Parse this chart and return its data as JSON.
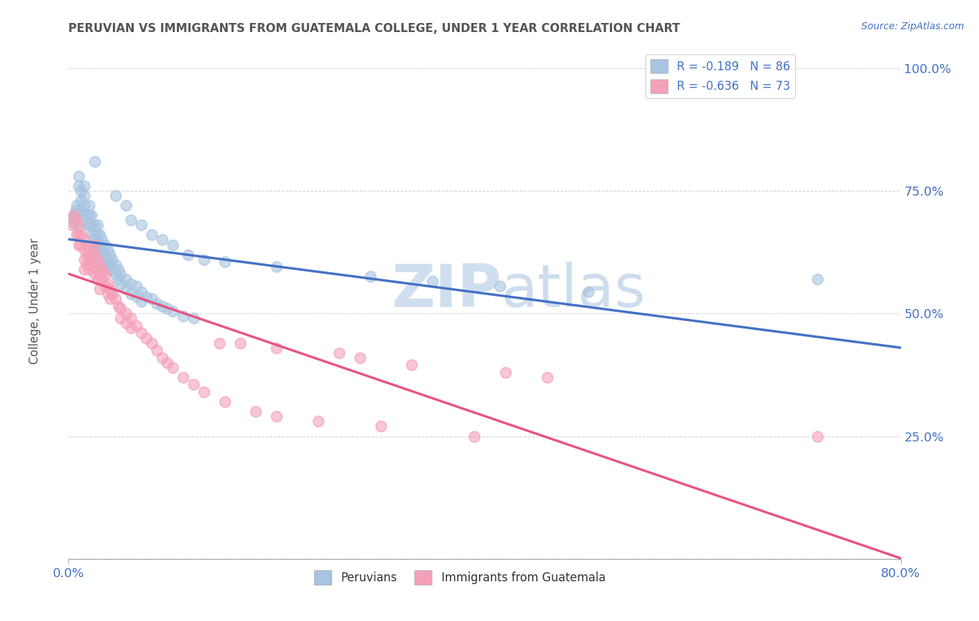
{
  "title": "PERUVIAN VS IMMIGRANTS FROM GUATEMALA COLLEGE, UNDER 1 YEAR CORRELATION CHART",
  "source_text": "Source: ZipAtlas.com",
  "ylabel": "College, Under 1 year",
  "legend_labels": [
    "Peruvians",
    "Immigrants from Guatemala"
  ],
  "r_values": [
    -0.189,
    -0.636
  ],
  "n_values": [
    86,
    73
  ],
  "scatter_color_blue": "#a8c4e0",
  "scatter_color_pink": "#f4a0b8",
  "line_color_blue": "#4472c4",
  "line_color_pink": "#e85580",
  "background_color": "#ffffff",
  "grid_color": "#cccccc",
  "title_color": "#555555",
  "axis_label_color": "#4472c4",
  "watermark_color": "#d0dff0",
  "xmin": 0.0,
  "xmax": 0.8,
  "ymin": 0.0,
  "ymax": 1.05,
  "yticks": [
    0.0,
    0.25,
    0.5,
    0.75,
    1.0
  ],
  "ytick_labels": [
    "",
    "25.0%",
    "50.0%",
    "75.0%",
    "100.0%"
  ],
  "blue_scatter": [
    [
      0.005,
      0.685
    ],
    [
      0.005,
      0.695
    ],
    [
      0.005,
      0.7
    ],
    [
      0.007,
      0.71
    ],
    [
      0.008,
      0.72
    ],
    [
      0.008,
      0.7
    ],
    [
      0.008,
      0.68
    ],
    [
      0.01,
      0.78
    ],
    [
      0.01,
      0.76
    ],
    [
      0.012,
      0.75
    ],
    [
      0.012,
      0.73
    ],
    [
      0.012,
      0.71
    ],
    [
      0.015,
      0.76
    ],
    [
      0.015,
      0.74
    ],
    [
      0.015,
      0.72
    ],
    [
      0.015,
      0.7
    ],
    [
      0.018,
      0.7
    ],
    [
      0.018,
      0.68
    ],
    [
      0.02,
      0.72
    ],
    [
      0.02,
      0.7
    ],
    [
      0.02,
      0.68
    ],
    [
      0.022,
      0.7
    ],
    [
      0.022,
      0.68
    ],
    [
      0.022,
      0.66
    ],
    [
      0.025,
      0.68
    ],
    [
      0.025,
      0.66
    ],
    [
      0.025,
      0.64
    ],
    [
      0.025,
      0.81
    ],
    [
      0.028,
      0.68
    ],
    [
      0.028,
      0.66
    ],
    [
      0.028,
      0.64
    ],
    [
      0.028,
      0.62
    ],
    [
      0.03,
      0.66
    ],
    [
      0.03,
      0.64
    ],
    [
      0.03,
      0.62
    ],
    [
      0.03,
      0.6
    ],
    [
      0.032,
      0.65
    ],
    [
      0.032,
      0.63
    ],
    [
      0.035,
      0.64
    ],
    [
      0.035,
      0.62
    ],
    [
      0.035,
      0.6
    ],
    [
      0.038,
      0.63
    ],
    [
      0.038,
      0.61
    ],
    [
      0.038,
      0.59
    ],
    [
      0.04,
      0.62
    ],
    [
      0.04,
      0.6
    ],
    [
      0.042,
      0.61
    ],
    [
      0.042,
      0.59
    ],
    [
      0.045,
      0.6
    ],
    [
      0.045,
      0.58
    ],
    [
      0.048,
      0.59
    ],
    [
      0.048,
      0.57
    ],
    [
      0.05,
      0.58
    ],
    [
      0.05,
      0.56
    ],
    [
      0.055,
      0.57
    ],
    [
      0.055,
      0.55
    ],
    [
      0.06,
      0.56
    ],
    [
      0.06,
      0.54
    ],
    [
      0.065,
      0.555
    ],
    [
      0.065,
      0.535
    ],
    [
      0.07,
      0.545
    ],
    [
      0.07,
      0.525
    ],
    [
      0.075,
      0.535
    ],
    [
      0.08,
      0.53
    ],
    [
      0.085,
      0.52
    ],
    [
      0.09,
      0.515
    ],
    [
      0.095,
      0.51
    ],
    [
      0.1,
      0.505
    ],
    [
      0.11,
      0.495
    ],
    [
      0.12,
      0.49
    ],
    [
      0.045,
      0.74
    ],
    [
      0.055,
      0.72
    ],
    [
      0.06,
      0.69
    ],
    [
      0.07,
      0.68
    ],
    [
      0.08,
      0.66
    ],
    [
      0.09,
      0.65
    ],
    [
      0.1,
      0.64
    ],
    [
      0.115,
      0.62
    ],
    [
      0.13,
      0.61
    ],
    [
      0.15,
      0.605
    ],
    [
      0.2,
      0.595
    ],
    [
      0.29,
      0.575
    ],
    [
      0.35,
      0.565
    ],
    [
      0.72,
      0.57
    ],
    [
      0.415,
      0.555
    ],
    [
      0.5,
      0.545
    ]
  ],
  "pink_scatter": [
    [
      0.003,
      0.68
    ],
    [
      0.005,
      0.7
    ],
    [
      0.007,
      0.69
    ],
    [
      0.008,
      0.66
    ],
    [
      0.01,
      0.68
    ],
    [
      0.01,
      0.66
    ],
    [
      0.01,
      0.64
    ],
    [
      0.012,
      0.66
    ],
    [
      0.012,
      0.64
    ],
    [
      0.015,
      0.65
    ],
    [
      0.015,
      0.63
    ],
    [
      0.015,
      0.61
    ],
    [
      0.015,
      0.59
    ],
    [
      0.018,
      0.64
    ],
    [
      0.018,
      0.62
    ],
    [
      0.018,
      0.6
    ],
    [
      0.02,
      0.63
    ],
    [
      0.02,
      0.61
    ],
    [
      0.02,
      0.59
    ],
    [
      0.022,
      0.62
    ],
    [
      0.022,
      0.6
    ],
    [
      0.025,
      0.64
    ],
    [
      0.025,
      0.62
    ],
    [
      0.025,
      0.58
    ],
    [
      0.028,
      0.61
    ],
    [
      0.028,
      0.59
    ],
    [
      0.028,
      0.57
    ],
    [
      0.03,
      0.6
    ],
    [
      0.03,
      0.58
    ],
    [
      0.03,
      0.55
    ],
    [
      0.032,
      0.59
    ],
    [
      0.032,
      0.57
    ],
    [
      0.035,
      0.58
    ],
    [
      0.035,
      0.555
    ],
    [
      0.038,
      0.56
    ],
    [
      0.038,
      0.54
    ],
    [
      0.04,
      0.55
    ],
    [
      0.04,
      0.53
    ],
    [
      0.042,
      0.54
    ],
    [
      0.045,
      0.53
    ],
    [
      0.048,
      0.515
    ],
    [
      0.05,
      0.51
    ],
    [
      0.05,
      0.49
    ],
    [
      0.055,
      0.5
    ],
    [
      0.055,
      0.48
    ],
    [
      0.06,
      0.49
    ],
    [
      0.06,
      0.47
    ],
    [
      0.065,
      0.475
    ],
    [
      0.07,
      0.46
    ],
    [
      0.075,
      0.45
    ],
    [
      0.08,
      0.44
    ],
    [
      0.085,
      0.425
    ],
    [
      0.09,
      0.41
    ],
    [
      0.095,
      0.4
    ],
    [
      0.1,
      0.39
    ],
    [
      0.11,
      0.37
    ],
    [
      0.12,
      0.355
    ],
    [
      0.13,
      0.34
    ],
    [
      0.145,
      0.44
    ],
    [
      0.15,
      0.32
    ],
    [
      0.165,
      0.44
    ],
    [
      0.18,
      0.3
    ],
    [
      0.2,
      0.43
    ],
    [
      0.2,
      0.29
    ],
    [
      0.24,
      0.28
    ],
    [
      0.26,
      0.42
    ],
    [
      0.28,
      0.41
    ],
    [
      0.3,
      0.27
    ],
    [
      0.33,
      0.395
    ],
    [
      0.39,
      0.25
    ],
    [
      0.42,
      0.38
    ],
    [
      0.46,
      0.37
    ],
    [
      0.72,
      0.25
    ]
  ]
}
